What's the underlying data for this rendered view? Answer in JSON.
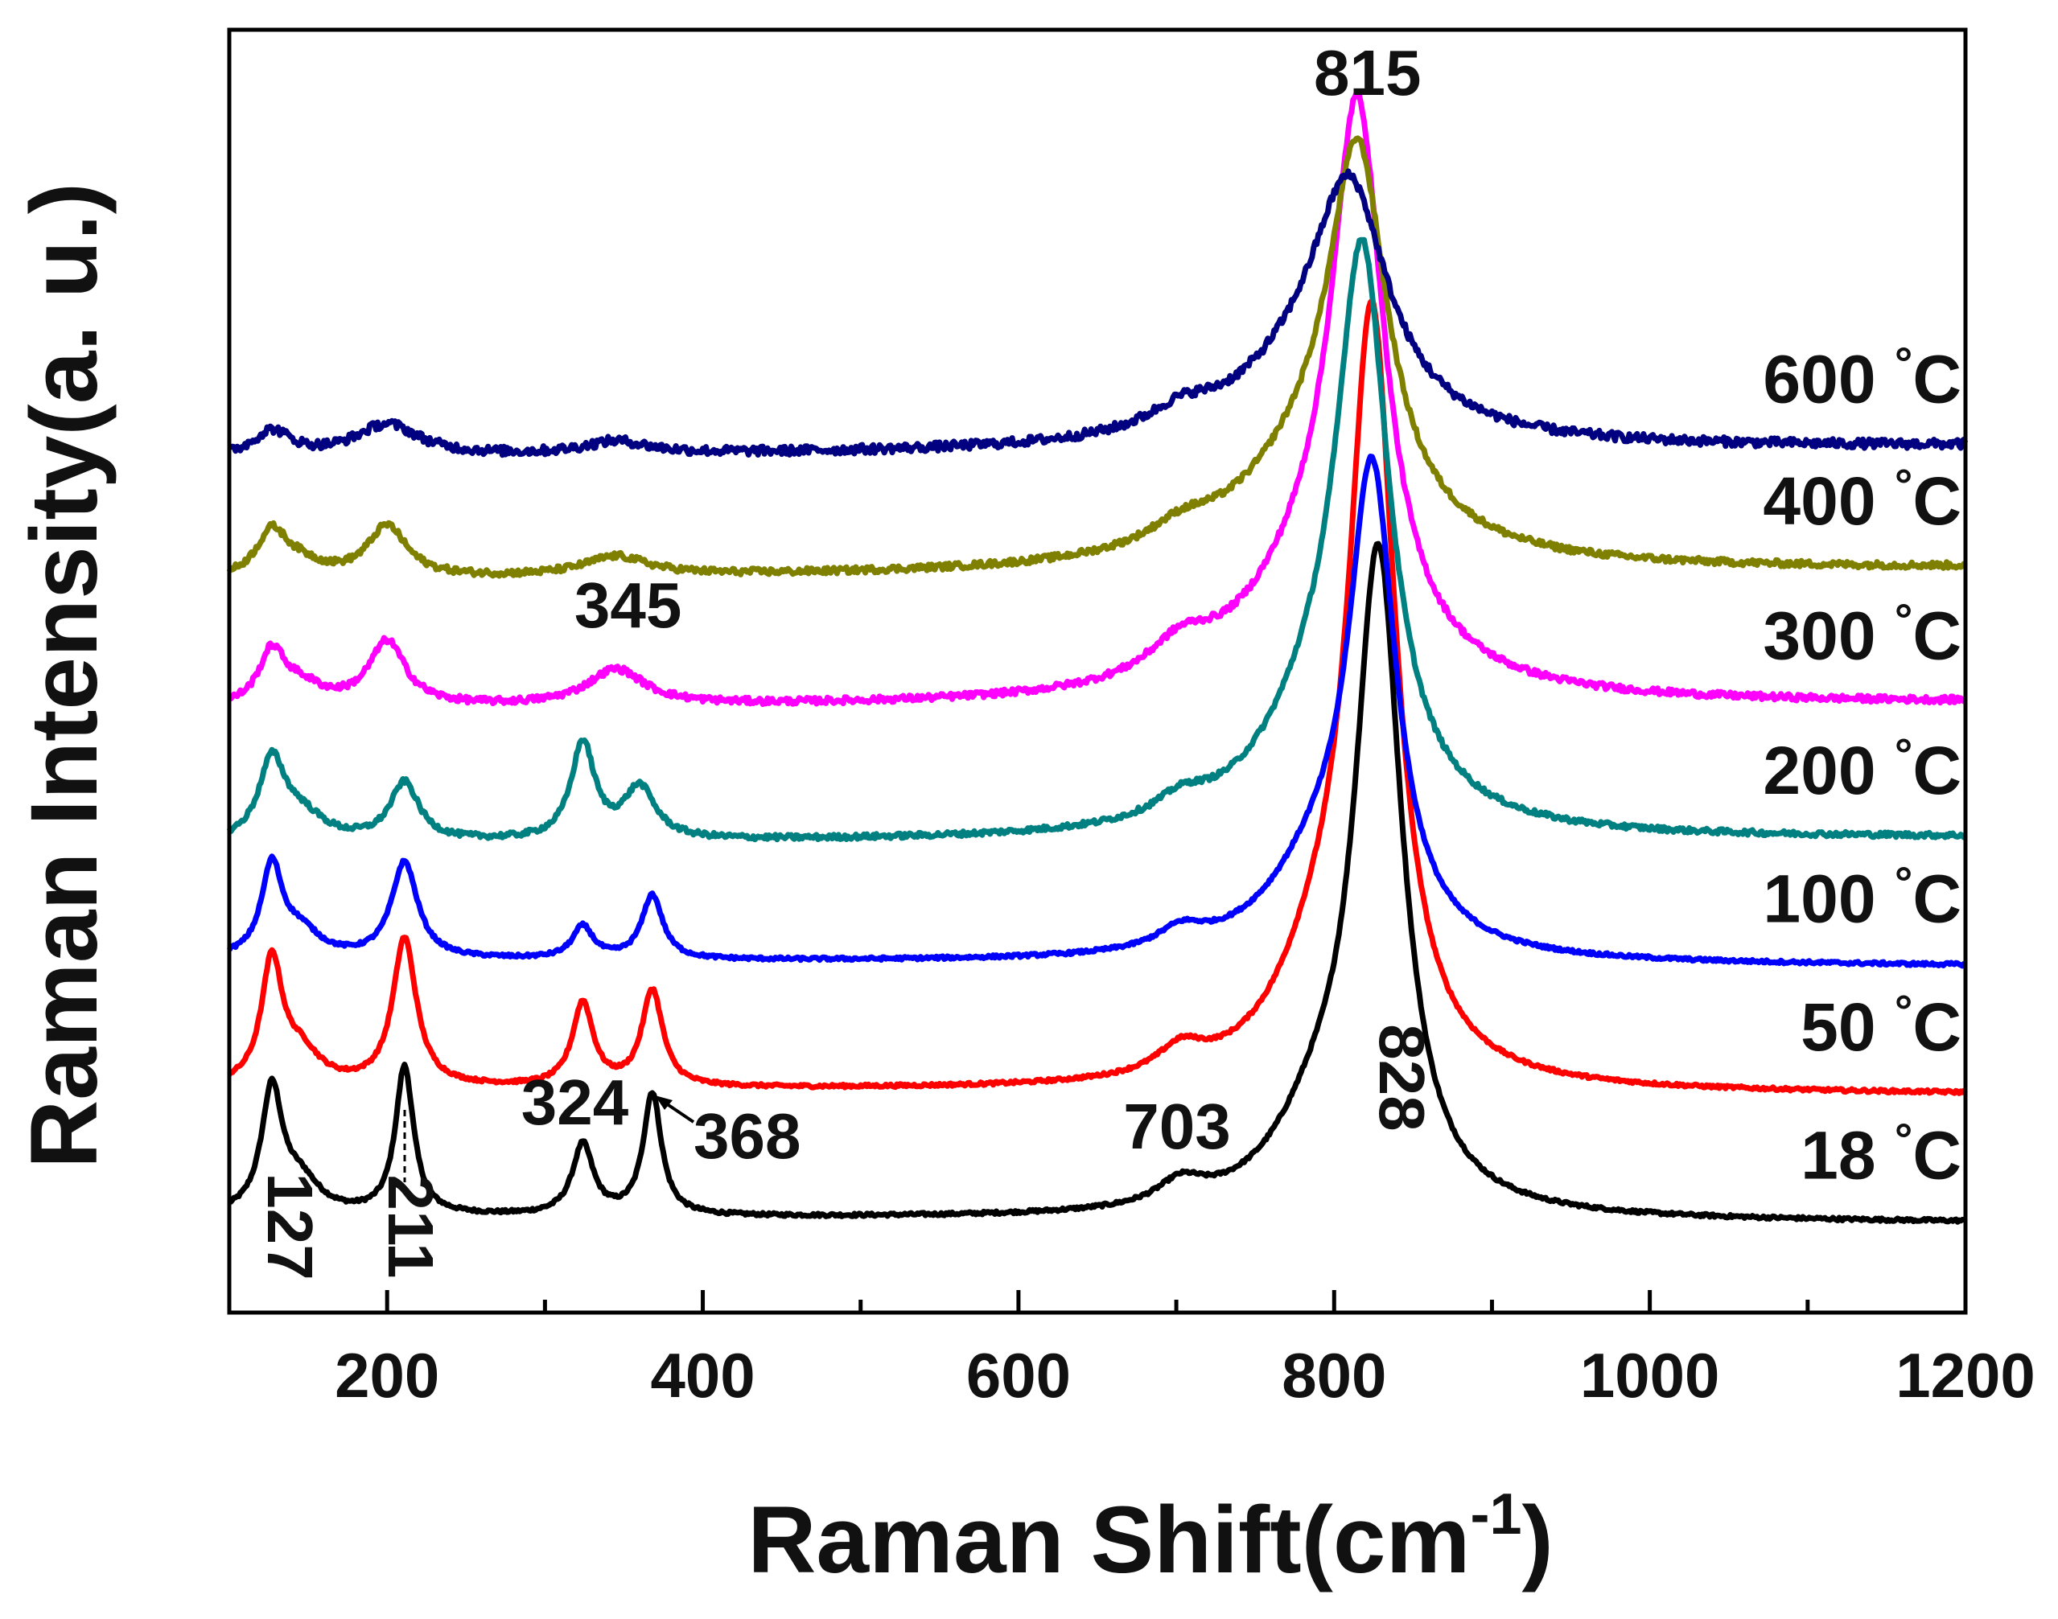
{
  "chart_data": {
    "type": "line",
    "title": "",
    "xlabel_main": "Raman Shift(cm",
    "xlabel_sup": "-1",
    "xlabel_close": ")",
    "ylabel": "Raman Intensity(a. u.)",
    "xlim": [
      100,
      1200
    ],
    "ylim": [
      0,
      10
    ],
    "xticks": [
      200,
      400,
      600,
      800,
      1000,
      1200
    ],
    "yticks_shown": false,
    "grid": false,
    "series": [
      {
        "name": "18 °C",
        "temp": "18",
        "color": "#000000",
        "baseline": 0.75,
        "tail": 0.7,
        "noise": 0.012,
        "peaks": [
          [
            127,
            0.95,
            8
          ],
          [
            145,
            0.25,
            15
          ],
          [
            211,
            1.15,
            7
          ],
          [
            324,
            0.55,
            8
          ],
          [
            368,
            0.95,
            7
          ],
          [
            703,
            0.18,
            18
          ],
          [
            828,
            5.0,
            18
          ],
          [
            790,
            0.6,
            35
          ]
        ]
      },
      {
        "name": "50 °C",
        "temp": "50",
        "color": "#ff0000",
        "baseline": 1.75,
        "tail": 1.7,
        "noise": 0.012,
        "peaks": [
          [
            127,
            0.95,
            8
          ],
          [
            145,
            0.25,
            15
          ],
          [
            211,
            1.15,
            9
          ],
          [
            324,
            0.65,
            8
          ],
          [
            368,
            0.75,
            8
          ],
          [
            703,
            0.2,
            18
          ],
          [
            824,
            5.8,
            18
          ],
          [
            790,
            0.7,
            35
          ]
        ]
      },
      {
        "name": "100 °C",
        "temp": "100",
        "color": "#0000ff",
        "baseline": 2.75,
        "tail": 2.7,
        "noise": 0.012,
        "peaks": [
          [
            127,
            0.7,
            8
          ],
          [
            145,
            0.2,
            15
          ],
          [
            211,
            0.75,
            10
          ],
          [
            324,
            0.25,
            8
          ],
          [
            368,
            0.5,
            8
          ],
          [
            703,
            0.15,
            18
          ],
          [
            824,
            3.6,
            18
          ],
          [
            790,
            0.6,
            40
          ]
        ]
      },
      {
        "name": "200 °C",
        "temp": "200",
        "color": "#008080",
        "baseline": 3.65,
        "tail": 3.7,
        "noise": 0.02,
        "peaks": [
          [
            127,
            0.6,
            10
          ],
          [
            145,
            0.2,
            18
          ],
          [
            211,
            0.45,
            11
          ],
          [
            324,
            0.75,
            9
          ],
          [
            360,
            0.4,
            12
          ],
          [
            703,
            0.15,
            20
          ],
          [
            818,
            4.1,
            20
          ],
          [
            790,
            0.8,
            45
          ]
        ]
      },
      {
        "name": "300 °C",
        "temp": "300",
        "color": "#ff00ff",
        "baseline": 4.7,
        "tail": 4.75,
        "noise": 0.025,
        "peaks": [
          [
            127,
            0.4,
            10
          ],
          [
            145,
            0.15,
            18
          ],
          [
            200,
            0.5,
            14
          ],
          [
            345,
            0.28,
            22
          ],
          [
            703,
            0.25,
            25
          ],
          [
            815,
            4.0,
            20
          ],
          [
            790,
            0.9,
            55
          ]
        ]
      },
      {
        "name": "400 °C",
        "temp": "400",
        "color": "#808000",
        "baseline": 5.7,
        "tail": 5.8,
        "noise": 0.025,
        "peaks": [
          [
            127,
            0.35,
            12
          ],
          [
            145,
            0.1,
            18
          ],
          [
            200,
            0.4,
            15
          ],
          [
            345,
            0.15,
            25
          ],
          [
            703,
            0.15,
            25
          ],
          [
            815,
            2.7,
            22
          ],
          [
            790,
            0.8,
            60
          ]
        ]
      },
      {
        "name": "600 °C",
        "temp": "600",
        "color": "#000080",
        "baseline": 6.65,
        "tail": 6.75,
        "noise": 0.035,
        "peaks": [
          [
            127,
            0.2,
            15
          ],
          [
            200,
            0.25,
            25
          ],
          [
            345,
            0.1,
            25
          ],
          [
            703,
            0.15,
            25
          ],
          [
            810,
            1.6,
            28
          ],
          [
            790,
            0.6,
            60
          ]
        ]
      }
    ],
    "temp_suffix": "°C",
    "peak_annotations": [
      {
        "text": "815",
        "x": 815,
        "rotated": false
      },
      {
        "text": "345",
        "x": 345,
        "rotated": false
      },
      {
        "text": "324",
        "x": 324,
        "rotated": false
      },
      {
        "text": "368",
        "x": 368,
        "rotated": false
      },
      {
        "text": "703",
        "x": 703,
        "rotated": false
      },
      {
        "text": "828",
        "x": 828,
        "rotated": true
      },
      {
        "text": "127",
        "x": 127,
        "rotated": true
      },
      {
        "text": "211",
        "x": 211,
        "rotated": true
      }
    ]
  }
}
